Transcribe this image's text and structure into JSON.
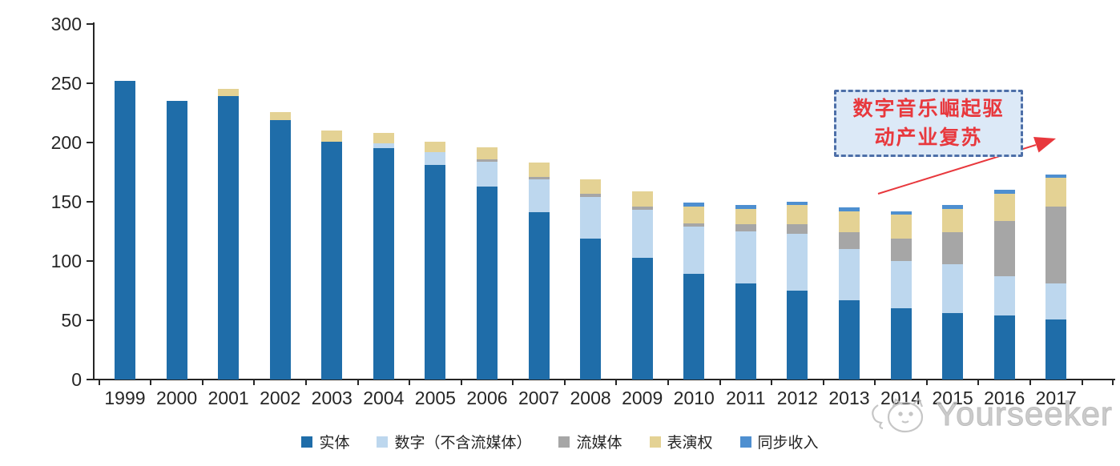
{
  "chart_data": {
    "type": "bar",
    "stacked": true,
    "title": "",
    "xlabel": "",
    "ylabel": "",
    "ylim": [
      0,
      300
    ],
    "yticks": [
      0,
      50,
      100,
      150,
      200,
      250,
      300
    ],
    "grid": false,
    "legend_position": "bottom",
    "categories": [
      "1999",
      "2000",
      "2001",
      "2002",
      "2003",
      "2004",
      "2005",
      "2006",
      "2007",
      "2008",
      "2009",
      "2010",
      "2011",
      "2012",
      "2013",
      "2014",
      "2015",
      "2016",
      "2017"
    ],
    "series": [
      {
        "name": "实体",
        "color": "#1f6da9",
        "values": [
          252,
          235,
          239,
          219,
          201,
          195,
          181,
          163,
          141,
          119,
          103,
          89,
          81,
          75,
          67,
          60,
          56,
          54,
          51
        ]
      },
      {
        "name": "数字（不含流媒体）",
        "color": "#bdd7ee",
        "values": [
          0,
          0,
          0,
          0,
          0,
          4,
          11,
          21,
          28,
          35,
          40,
          40,
          44,
          48,
          43,
          40,
          41,
          33,
          30
        ]
      },
      {
        "name": "流媒体",
        "color": "#a6a6a6",
        "values": [
          0,
          0,
          0,
          0,
          0,
          0,
          0,
          2,
          2,
          3,
          3,
          3,
          6,
          8,
          14,
          19,
          27,
          47,
          65
        ]
      },
      {
        "name": "表演权",
        "color": "#e4d294",
        "values": [
          0,
          0,
          6,
          7,
          9,
          9,
          9,
          10,
          12,
          12,
          13,
          14,
          13,
          16,
          18,
          20,
          20,
          23,
          24
        ]
      },
      {
        "name": "同步收入",
        "color": "#4e8fd0",
        "values": [
          0,
          0,
          0,
          0,
          0,
          0,
          0,
          0,
          0,
          0,
          0,
          3,
          3,
          3,
          3,
          3,
          3,
          3,
          3
        ]
      }
    ],
    "totals": [
      252,
      235,
      245,
      226,
      210,
      208,
      201,
      196,
      183,
      169,
      159,
      149,
      147,
      150,
      145,
      142,
      147,
      160,
      173
    ]
  },
  "annotation": {
    "line1": "数字音乐崛起驱",
    "line2": "动产业复苏",
    "text_color": "#e8383d",
    "box_fill": "#dce9f7",
    "box_border": "#4d6fa8",
    "arrow_color": "#e8383d"
  },
  "watermark": {
    "text": "Yourseeker"
  },
  "icons": {
    "watermark_logo": "cat-face-icon"
  }
}
